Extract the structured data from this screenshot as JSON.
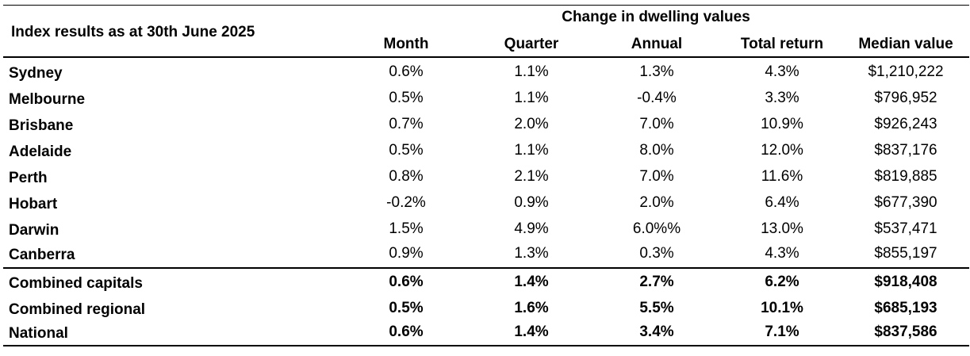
{
  "table": {
    "title": "Index results as at 30th June 2025",
    "group_header": "Change in dwelling values",
    "columns": [
      "Month",
      "Quarter",
      "Annual",
      "Total return",
      "Median value"
    ],
    "rows": [
      {
        "label": "Sydney",
        "values": [
          "0.6%",
          "1.1%",
          "1.3%",
          "4.3%",
          "$1,210,222"
        ]
      },
      {
        "label": "Melbourne",
        "values": [
          "0.5%",
          "1.1%",
          "-0.4%",
          "3.3%",
          "$796,952"
        ]
      },
      {
        "label": "Brisbane",
        "values": [
          "0.7%",
          "2.0%",
          "7.0%",
          "10.9%",
          "$926,243"
        ]
      },
      {
        "label": "Adelaide",
        "values": [
          "0.5%",
          "1.1%",
          "8.0%",
          "12.0%",
          "$837,176"
        ]
      },
      {
        "label": "Perth",
        "values": [
          "0.8%",
          "2.1%",
          "7.0%",
          "11.6%",
          "$819,885"
        ]
      },
      {
        "label": "Hobart",
        "values": [
          "-0.2%",
          "0.9%",
          "2.0%",
          "6.4%",
          "$677,390"
        ]
      },
      {
        "label": "Darwin",
        "values": [
          "1.5%",
          "4.9%",
          "6.0%%",
          "13.0%",
          "$537,471"
        ]
      },
      {
        "label": "Canberra",
        "values": [
          "0.9%",
          "1.3%",
          "0.3%",
          "4.3%",
          "$855,197"
        ]
      }
    ],
    "summary_rows": [
      {
        "label": "Combined capitals",
        "values": [
          "0.6%",
          "1.4%",
          "2.7%",
          "6.2%",
          "$918,408"
        ]
      },
      {
        "label": "Combined regional",
        "values": [
          "0.5%",
          "1.6%",
          "5.5%",
          "10.1%",
          "$685,193"
        ]
      },
      {
        "label": "National",
        "values": [
          "0.6%",
          "1.4%",
          "3.4%",
          "7.1%",
          "$837,586"
        ]
      }
    ]
  }
}
